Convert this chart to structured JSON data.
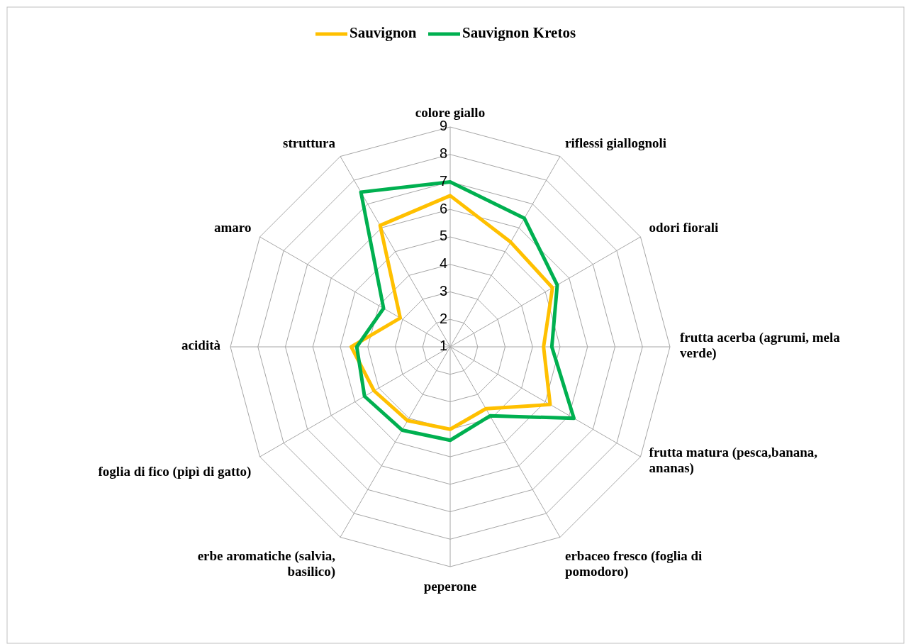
{
  "chart_data": {
    "type": "radar",
    "categories": [
      "colore giallo",
      "riflessi giallognoli",
      "odori fiorali",
      "frutta acerba (agrumi, mela verde)",
      "frutta matura (pesca,banana, ananas)",
      "erbaceo fresco (foglia di pomodoro)",
      "peperone",
      "erbe aromatiche (salvia, basilico)",
      "foglia di fico (pipì di gatto)",
      "acidità",
      "amaro",
      "struttura"
    ],
    "series": [
      {
        "name": "Sauvignon",
        "color": "#ffc000",
        "values": [
          6.5,
          5.4,
          5.3,
          4.4,
          5.2,
          3.6,
          4.0,
          4.1,
          4.2,
          4.6,
          3.1,
          6.1
        ]
      },
      {
        "name": "Sauvignon Kretos",
        "color": "#00b050",
        "values": [
          7.0,
          6.4,
          5.5,
          4.7,
          6.2,
          3.9,
          4.4,
          4.5,
          4.6,
          4.4,
          3.8,
          7.5
        ]
      }
    ],
    "ylim": [
      1,
      9
    ],
    "yticks": [
      1,
      2,
      3,
      4,
      5,
      6,
      7,
      8,
      9
    ],
    "grid": true,
    "legend": "top",
    "marker": "none",
    "line_style": "solid"
  }
}
